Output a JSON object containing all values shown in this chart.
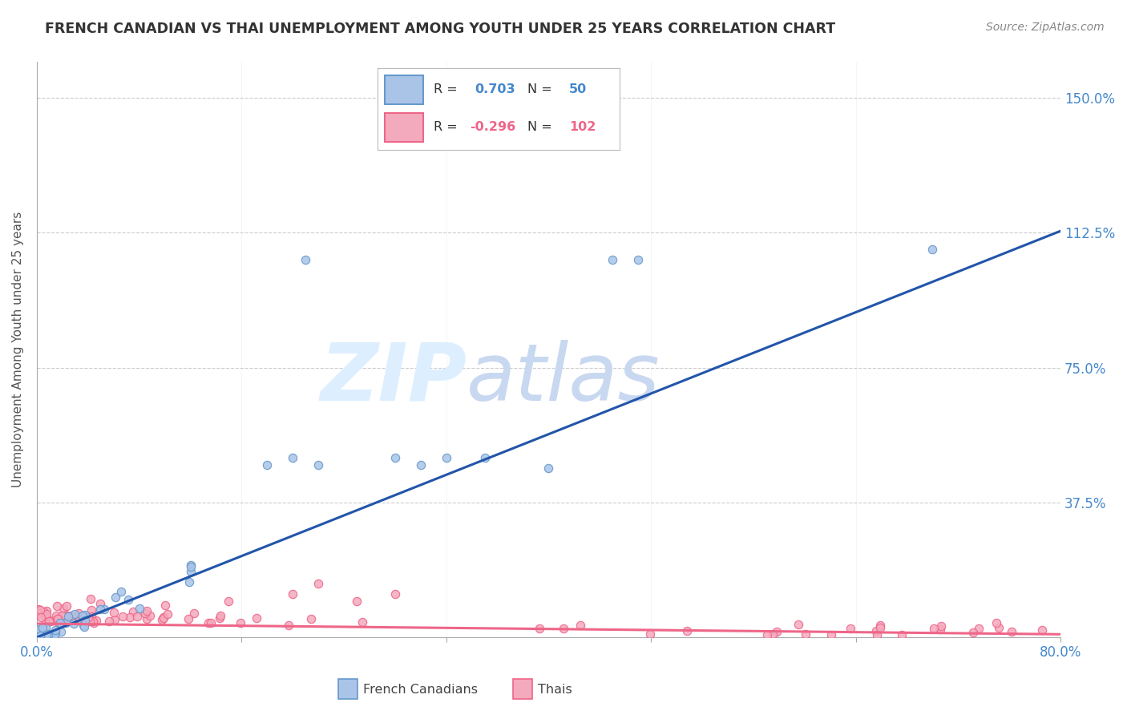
{
  "title": "FRENCH CANADIAN VS THAI UNEMPLOYMENT AMONG YOUTH UNDER 25 YEARS CORRELATION CHART",
  "source": "Source: ZipAtlas.com",
  "ylabel": "Unemployment Among Youth under 25 years",
  "xlim": [
    0.0,
    0.8
  ],
  "ylim": [
    0.0,
    1.6
  ],
  "ytick_positions": [
    0.0,
    0.375,
    0.75,
    1.125,
    1.5
  ],
  "yticklabels": [
    "",
    "37.5%",
    "75.0%",
    "112.5%",
    "150.0%"
  ],
  "blue_color": "#6699CC",
  "blue_fill": "#AAC4E8",
  "pink_color": "#EE6688",
  "pink_fill": "#F4AABD",
  "blue_line_color": "#2255AA",
  "pink_line_color": "#EE6688",
  "blue_N": 50,
  "pink_N": 102,
  "background_color": "#FFFFFF",
  "grid_color": "#CCCCCC",
  "tick_label_color": "#4488CC",
  "title_color": "#333333",
  "watermark_zip": "ZIP",
  "watermark_atlas": "atlas",
  "watermark_color_zip": "#DDEEFF",
  "watermark_color_atlas": "#DDEEFF",
  "watermark_fontsize": 72
}
